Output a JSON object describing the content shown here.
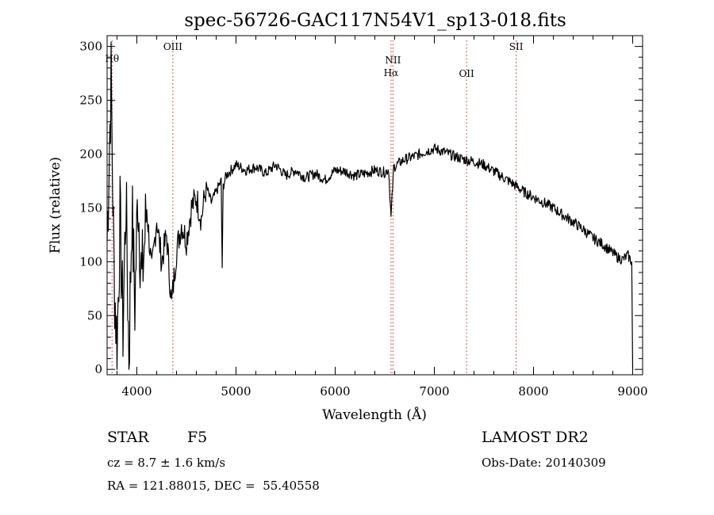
{
  "chart_data": {
    "type": "line",
    "title": "spec-56726-GAC117N54V1_sp13-018.fits",
    "xlabel": "Wavelength (Å)",
    "ylabel": "Flux (relative)",
    "xlim": [
      3700,
      9100
    ],
    "ylim": [
      -5,
      310
    ],
    "xticks": [
      4000,
      5000,
      6000,
      7000,
      8000,
      9000
    ],
    "yticks": [
      0,
      50,
      100,
      150,
      200,
      250,
      300
    ],
    "grid": false,
    "line_color": "#000000",
    "marker_color": "#cc2222",
    "markers": [
      {
        "label": "Hθ",
        "x": 3750
      },
      {
        "label": "OIII",
        "x": 4363
      },
      {
        "label": "NII",
        "x": 6583
      },
      {
        "label": "Hα",
        "x": 6563
      },
      {
        "label": "OII",
        "x": 7325
      },
      {
        "label": "SII",
        "x": 7825
      }
    ],
    "series": [
      {
        "x": [
          3700,
          3740,
          3770,
          3800,
          3830,
          3860,
          3890,
          3920,
          3950,
          3980,
          4010,
          4050,
          4100,
          4150,
          4200,
          4250,
          4300,
          4350,
          4400,
          4450,
          4500,
          4550,
          4600,
          4650,
          4700,
          4750,
          4800,
          4850,
          4861,
          4870,
          4900,
          4950,
          5000,
          5100,
          5200,
          5300,
          5400,
          5500,
          5600,
          5700,
          5800,
          5900,
          6000,
          6100,
          6200,
          6300,
          6400,
          6500,
          6540,
          6563,
          6590,
          6650,
          6700,
          6800,
          6900,
          7000,
          7100,
          7200,
          7300,
          7400,
          7500,
          7600,
          7700,
          7800,
          7900,
          8000,
          8100,
          8200,
          8300,
          8400,
          8500,
          8600,
          8700,
          8800,
          8850,
          8900,
          8950,
          8990,
          9000
        ],
        "y": [
          120,
          270,
          90,
          20,
          140,
          40,
          160,
          10,
          150,
          60,
          165,
          80,
          150,
          90,
          140,
          100,
          125,
          60,
          110,
          135,
          120,
          150,
          160,
          140,
          170,
          155,
          165,
          175,
          95,
          170,
          180,
          185,
          190,
          185,
          188,
          182,
          190,
          180,
          185,
          178,
          182,
          176,
          185,
          184,
          180,
          182,
          185,
          183,
          186,
          140,
          188,
          192,
          195,
          198,
          202,
          205,
          202,
          198,
          195,
          193,
          190,
          184,
          178,
          172,
          165,
          160,
          155,
          150,
          143,
          137,
          130,
          122,
          116,
          108,
          104,
          102,
          106,
          100,
          0
        ]
      }
    ]
  },
  "footer": {
    "object_class": "STAR",
    "subclass": "F5",
    "survey": "LAMOST DR2",
    "cz": "cz = 8.7 ± 1.6 km/s",
    "obs_date": "Obs-Date: 20140309",
    "coords": "RA = 121.88015, DEC =  55.40558"
  }
}
